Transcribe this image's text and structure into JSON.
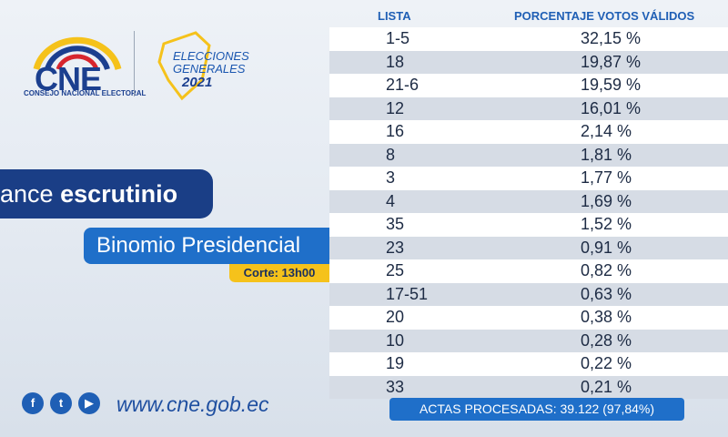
{
  "branding": {
    "logo": "CNE",
    "organization": "CONSEJO NACIONAL ELECTORAL",
    "election_line1": "ELECCIONES",
    "election_line2": "GENERALES",
    "election_year": "2021"
  },
  "banner": {
    "title_light": "ance",
    "title_bold": "escrutinio",
    "subtitle": "Binomio Presidencial",
    "cutoff": "Corte: 13h00"
  },
  "table": {
    "headers": [
      "LISTA",
      "PORCENTAJE VOTOS VÁLIDOS"
    ],
    "rows": [
      [
        "1-5",
        "32,15 %"
      ],
      [
        "18",
        "19,87 %"
      ],
      [
        "21-6",
        "19,59 %"
      ],
      [
        "12",
        "16,01 %"
      ],
      [
        "16",
        "2,14 %"
      ],
      [
        "8",
        "1,81 %"
      ],
      [
        "3",
        "1,77 %"
      ],
      [
        "4",
        "1,69 %"
      ],
      [
        "35",
        "1,52 %"
      ],
      [
        "23",
        "0,91 %"
      ],
      [
        "25",
        "0,82 %"
      ],
      [
        "17-51",
        "0,63 %"
      ],
      [
        "20",
        "0,38 %"
      ],
      [
        "10",
        "0,28 %"
      ],
      [
        "19",
        "0,22 %"
      ],
      [
        "33",
        "0,21 %"
      ]
    ],
    "footer": "ACTAS PROCESADAS: 39.122 (97,84%)"
  },
  "footer": {
    "website": "www.cne.gob.ec"
  }
}
